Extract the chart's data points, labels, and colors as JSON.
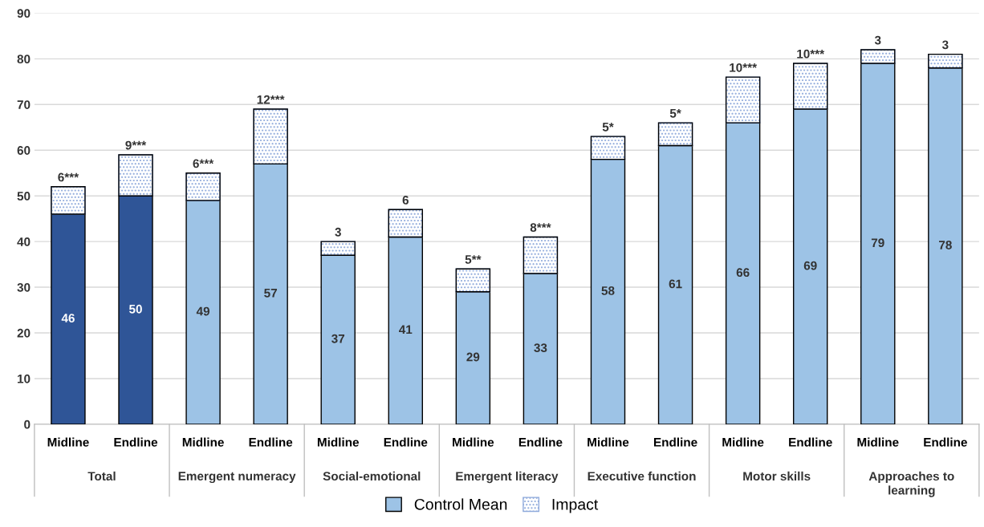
{
  "chart_data": {
    "type": "bar",
    "stacked": true,
    "categories": [
      "Midline",
      "Endline",
      "Midline",
      "Endline",
      "Midline",
      "Endline",
      "Midline",
      "Endline",
      "Midline",
      "Endline",
      "Midline",
      "Endline",
      "Midline",
      "Endline"
    ],
    "annotations": [
      "Total",
      "Emergent numeracy",
      "Social-emotional",
      "Emergent literacy",
      "Executive function",
      "Motor skills",
      "Approaches to\nlearning"
    ],
    "series": [
      {
        "name": "Control Mean",
        "color": "#9dc3e6",
        "colors": [
          "#2f5597",
          "#2f5597",
          "#9dc3e6",
          "#9dc3e6",
          "#9dc3e6",
          "#9dc3e6",
          "#9dc3e6",
          "#9dc3e6",
          "#9dc3e6",
          "#9dc3e6",
          "#9dc3e6",
          "#9dc3e6",
          "#9dc3e6",
          "#9dc3e6"
        ],
        "values": [
          46,
          50,
          49,
          57,
          37,
          41,
          29,
          33,
          58,
          61,
          66,
          69,
          79,
          78
        ],
        "value_labels": [
          "46",
          "50",
          "49",
          "57",
          "37",
          "41",
          "29",
          "33",
          "58",
          "61",
          "66",
          "69",
          "79",
          "78"
        ]
      },
      {
        "name": "Impact",
        "color": "#8faadc",
        "values": [
          6,
          9,
          6,
          12,
          3,
          6,
          5,
          8,
          5,
          5,
          10,
          10,
          3,
          3
        ],
        "value_labels": [
          "6***",
          "9***",
          "6***",
          "12***",
          "3",
          "6",
          "5**",
          "8***",
          "5*",
          "5*",
          "10***",
          "10***",
          "3",
          "3"
        ]
      }
    ],
    "ylim": [
      0,
      90
    ],
    "yticks": [
      0,
      10,
      20,
      30,
      40,
      50,
      60,
      70,
      80,
      90
    ],
    "grid": "y",
    "legend": "bottom"
  }
}
